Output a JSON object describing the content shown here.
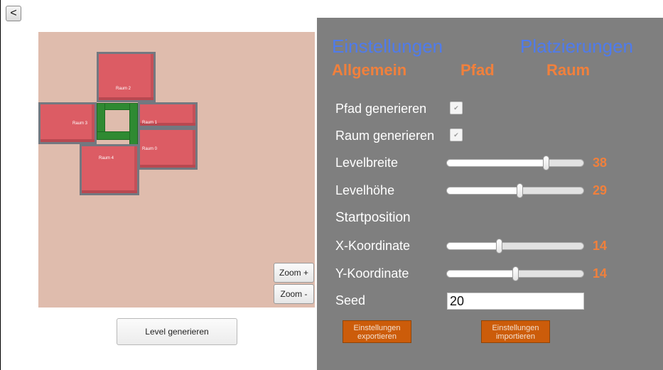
{
  "nav": {
    "back_label": "<"
  },
  "map": {
    "rooms": [
      {
        "label": "Raum 2"
      },
      {
        "label": "Raum 3"
      },
      {
        "label": "Raum 1"
      },
      {
        "label": "Raum 0"
      },
      {
        "label": "Raum 4"
      }
    ],
    "zoom_in_label": "Zoom +",
    "zoom_out_label": "Zoom -",
    "colors": {
      "background": "#dfbcad",
      "room": "#dc5c64",
      "path": "#2f8a32"
    }
  },
  "generate_button_label": "Level generieren",
  "panel": {
    "tabs_primary": [
      "Einstellungen",
      "Platzierungen"
    ],
    "tabs_secondary": [
      "Allgemein",
      "Pfad",
      "Raum"
    ],
    "pfad_generieren_label": "Pfad generieren",
    "pfad_generieren_checked": true,
    "raum_generieren_label": "Raum generieren",
    "raum_generieren_checked": true,
    "levelbreite": {
      "label": "Levelbreite",
      "value": "38",
      "fraction": 0.72
    },
    "levelhoehe": {
      "label": "Levelhöhe",
      "value": "29",
      "fraction": 0.53
    },
    "startposition_label": "Startposition",
    "x_koordinate": {
      "label": "X-Koordinate",
      "value": "14",
      "fraction": 0.38
    },
    "y_koordinate": {
      "label": "Y-Koordinate",
      "value": "14",
      "fraction": 0.5
    },
    "seed": {
      "label": "Seed",
      "value": "20"
    },
    "export_label": "Einstellungen exportieren",
    "import_label": "Einstellungen importieren",
    "colors": {
      "panel": "#7f7f7f",
      "tab_blue": "#4f7bec",
      "tab_orange": "#f1803c",
      "button": "#cc5c0a"
    }
  }
}
